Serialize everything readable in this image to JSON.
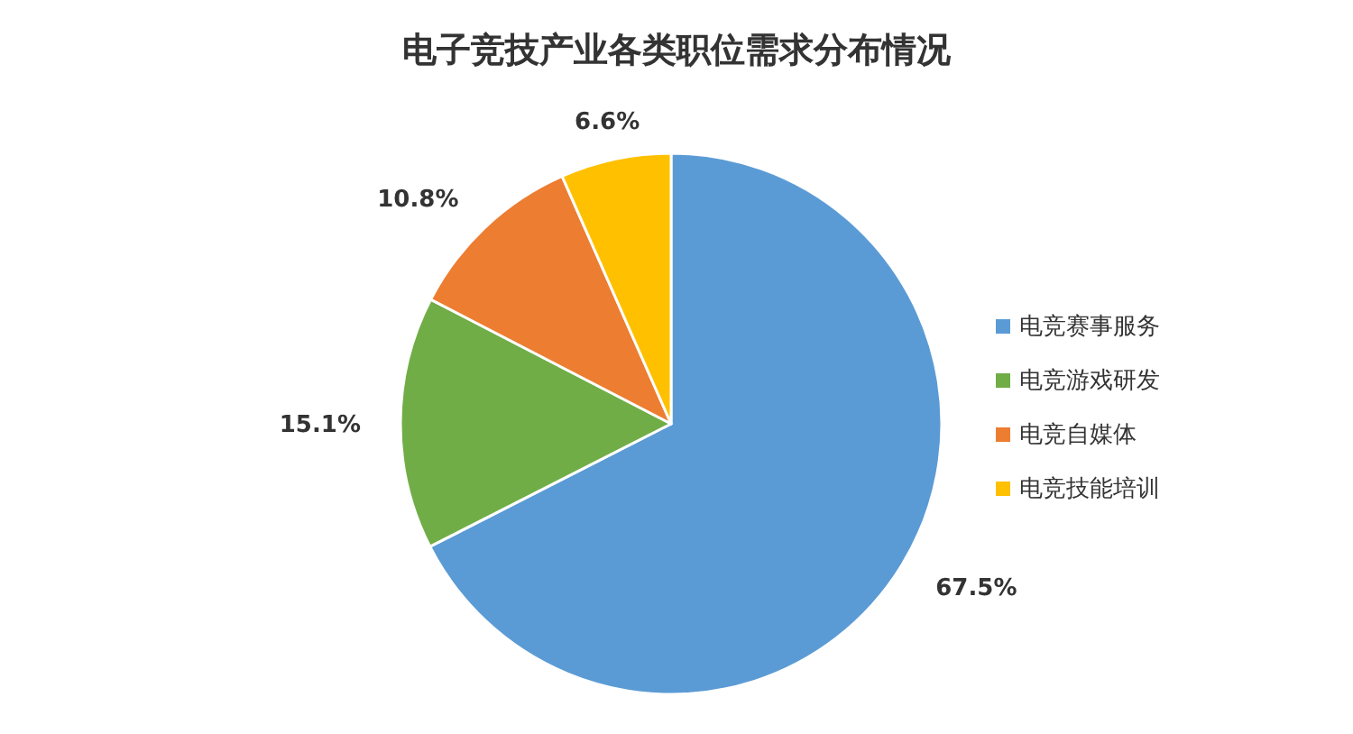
{
  "chart_data": {
    "type": "pie",
    "title": "电子竞技产业各类职位需求分布情况",
    "categories": [
      "电竞赛事服务",
      "电竞游戏研发",
      "电竞自媒体",
      "电竞技能培训"
    ],
    "values": [
      67.5,
      15.1,
      10.8,
      6.6
    ],
    "colors": [
      "#5b9bd5",
      "#70ad47",
      "#ed7d31",
      "#ffc000"
    ],
    "value_labels": [
      "67.5%",
      "15.1%",
      "10.8%",
      "6.6%"
    ],
    "legend": "right"
  }
}
